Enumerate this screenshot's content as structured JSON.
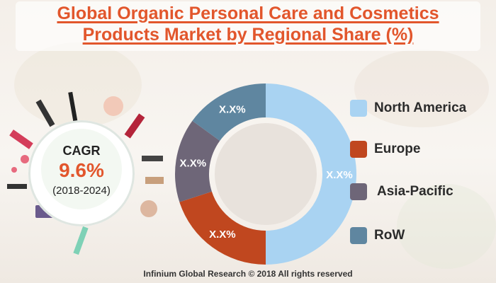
{
  "title_line1": "Global Organic Personal Care and Cosmetics",
  "title_line2": "Products Market by Regional Share (%)",
  "cagr": {
    "label": "CAGR",
    "value": "9.6%",
    "period": "(2018-2024)"
  },
  "footer": "Infinium Global Research © 2018 All rights reserved",
  "chart_data": {
    "type": "pie",
    "donut": true,
    "categories": [
      "North America",
      "Europe",
      "Asia-Pacific",
      "RoW"
    ],
    "values": [
      50,
      20,
      15,
      15
    ],
    "value_labels": [
      "X.X%",
      "X.X%",
      "X.X%",
      "X.X%"
    ],
    "colors": [
      "#a9d3f2",
      "#c0471f",
      "#6e6678",
      "#5f86a0"
    ],
    "legend_position": "right"
  }
}
